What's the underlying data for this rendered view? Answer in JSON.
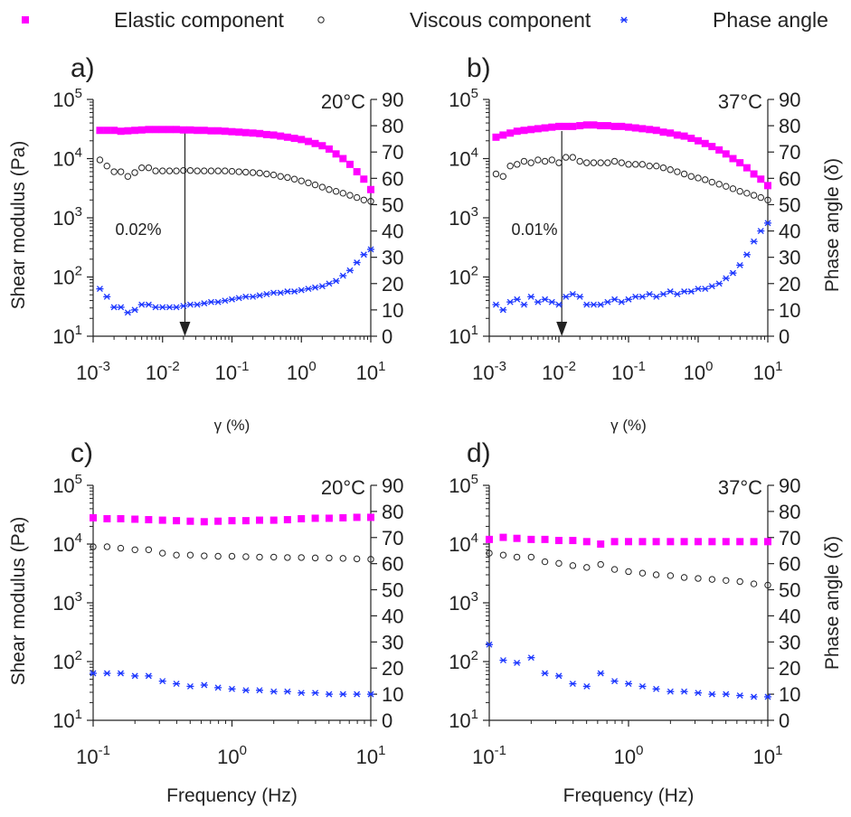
{
  "legend": [
    {
      "label": "Elastic component",
      "icon": "pink-square-marker",
      "color": "#ff00ff"
    },
    {
      "label": "Viscous component",
      "icon": "open-circle-marker",
      "color": "#222222"
    },
    {
      "label": "Phase angle",
      "icon": "blue-asterisk-marker",
      "color": "#1a35ff"
    }
  ],
  "left_axis": {
    "label": "Shear modulus (Pa)",
    "ticks": [
      {
        "base": "10",
        "exp": "1"
      },
      {
        "base": "10",
        "exp": "2"
      },
      {
        "base": "10",
        "exp": "3"
      },
      {
        "base": "10",
        "exp": "4"
      },
      {
        "base": "10",
        "exp": "5"
      }
    ]
  },
  "right_axis": {
    "label": "Phase angle (δ)",
    "ticks": [
      "0",
      "10",
      "20",
      "30",
      "40",
      "50",
      "60",
      "70",
      "80",
      "90"
    ]
  },
  "x_ticks": {
    "strain": [
      {
        "base": "10",
        "exp": "-3"
      },
      {
        "base": "10",
        "exp": "-2"
      },
      {
        "base": "10",
        "exp": "-1"
      },
      {
        "base": "10",
        "exp": "0"
      },
      {
        "base": "10",
        "exp": "1"
      }
    ],
    "frequency": [
      {
        "base": "10",
        "exp": "-1"
      },
      {
        "base": "10",
        "exp": "0"
      },
      {
        "base": "10",
        "exp": "1"
      }
    ]
  },
  "chart_data": [
    {
      "type": "scatter",
      "panel": "a)",
      "temperature": "20°C",
      "temperature_color": "#1a1aa0",
      "xlabel": "γ (%)",
      "x_scale": "log",
      "xlim": [
        0.001,
        10
      ],
      "ylabel": "Shear modulus (Pa)",
      "y_scale": "log",
      "ylim": [
        10,
        100000
      ],
      "y2label": "",
      "y2lim": [
        0,
        90
      ],
      "annotation": {
        "text": "0.02%",
        "arrow_x": 0.021
      },
      "series": [
        {
          "name": "Elastic component",
          "axis": "left",
          "x": [
            0.00125,
            0.00158,
            0.002,
            0.00251,
            0.00316,
            0.00398,
            0.00501,
            0.00631,
            0.00794,
            0.01,
            0.0126,
            0.0158,
            0.02,
            0.0251,
            0.0316,
            0.0398,
            0.0501,
            0.0631,
            0.0794,
            0.1,
            0.126,
            0.158,
            0.2,
            0.251,
            0.316,
            0.398,
            0.501,
            0.631,
            0.794,
            1,
            1.26,
            1.58,
            2,
            2.51,
            3.16,
            3.98,
            5.01,
            6.31,
            7.94,
            10
          ],
          "y": [
            30000,
            30000,
            30000,
            29000,
            29500,
            30000,
            30500,
            31000,
            31000,
            31000,
            31000,
            31000,
            30500,
            30500,
            30000,
            30000,
            29500,
            29500,
            29000,
            28500,
            28000,
            27500,
            27000,
            26500,
            25500,
            25000,
            24000,
            23000,
            22000,
            21000,
            19500,
            18000,
            16500,
            14500,
            12000,
            10000,
            8000,
            6000,
            4500,
            3000
          ]
        },
        {
          "name": "Viscous component",
          "axis": "left",
          "x": [
            0.00125,
            0.00158,
            0.002,
            0.00251,
            0.00316,
            0.00398,
            0.00501,
            0.00631,
            0.00794,
            0.01,
            0.0126,
            0.0158,
            0.02,
            0.0251,
            0.0316,
            0.0398,
            0.0501,
            0.0631,
            0.0794,
            0.1,
            0.126,
            0.158,
            0.2,
            0.251,
            0.316,
            0.398,
            0.501,
            0.631,
            0.794,
            1,
            1.26,
            1.58,
            2,
            2.51,
            3.16,
            3.98,
            5.01,
            6.31,
            7.94,
            10
          ],
          "y": [
            9500,
            7500,
            6000,
            6000,
            5000,
            5800,
            7000,
            7000,
            6200,
            6200,
            6200,
            6200,
            6300,
            6300,
            6200,
            6200,
            6200,
            6200,
            6200,
            6100,
            6000,
            5900,
            5800,
            5700,
            5500,
            5300,
            5000,
            4800,
            4500,
            4200,
            3900,
            3600,
            3300,
            3000,
            2800,
            2600,
            2400,
            2200,
            2000,
            1900
          ]
        },
        {
          "name": "Phase angle",
          "axis": "right",
          "x": [
            0.00125,
            0.00158,
            0.002,
            0.00251,
            0.00316,
            0.00398,
            0.00501,
            0.00631,
            0.00794,
            0.01,
            0.0126,
            0.0158,
            0.02,
            0.0251,
            0.0316,
            0.0398,
            0.0501,
            0.0631,
            0.0794,
            0.1,
            0.126,
            0.158,
            0.2,
            0.251,
            0.316,
            0.398,
            0.501,
            0.631,
            0.794,
            1,
            1.26,
            1.58,
            2,
            2.51,
            3.16,
            3.98,
            5.01,
            6.31,
            7.94,
            10
          ],
          "y": [
            18,
            15,
            11,
            11,
            9,
            10,
            12,
            12,
            11,
            11,
            11,
            11,
            11.5,
            12,
            12,
            12.5,
            13,
            13,
            13.5,
            14,
            14.5,
            15,
            15,
            15.5,
            16,
            16.5,
            16.5,
            17,
            17,
            17.5,
            18,
            18.5,
            19,
            20,
            21,
            23,
            25,
            28,
            31,
            33
          ]
        }
      ]
    },
    {
      "type": "scatter",
      "panel": "b)",
      "temperature": "37°C",
      "temperature_color": "#222222",
      "xlabel": "γ (%)",
      "x_scale": "log",
      "xlim": [
        0.001,
        10
      ],
      "ylabel": "",
      "y_scale": "log",
      "ylim": [
        10,
        100000
      ],
      "y2label": "Phase angle (δ)",
      "y2lim": [
        0,
        90
      ],
      "annotation": {
        "text": "0.01%",
        "arrow_x": 0.011
      },
      "series": [
        {
          "name": "Elastic component",
          "axis": "left",
          "x": [
            0.00125,
            0.00158,
            0.002,
            0.00251,
            0.00316,
            0.00398,
            0.00501,
            0.00631,
            0.00794,
            0.01,
            0.0126,
            0.0158,
            0.02,
            0.0251,
            0.0316,
            0.0398,
            0.0501,
            0.0631,
            0.0794,
            0.1,
            0.126,
            0.158,
            0.2,
            0.251,
            0.316,
            0.398,
            0.501,
            0.631,
            0.794,
            1,
            1.26,
            1.58,
            2,
            2.51,
            3.16,
            3.98,
            5.01,
            6.31,
            7.94,
            10
          ],
          "y": [
            23000,
            25000,
            27000,
            29000,
            30000,
            31000,
            32000,
            33000,
            34000,
            35000,
            35000,
            35000,
            36000,
            37000,
            37000,
            36000,
            36000,
            35000,
            35000,
            34000,
            33000,
            32000,
            31000,
            30000,
            28000,
            27000,
            25000,
            24000,
            22000,
            20000,
            18000,
            16000,
            14000,
            12000,
            10000,
            8500,
            7000,
            5500,
            4500,
            3500
          ]
        },
        {
          "name": "Viscous component",
          "axis": "left",
          "x": [
            0.00125,
            0.00158,
            0.002,
            0.00251,
            0.00316,
            0.00398,
            0.00501,
            0.00631,
            0.00794,
            0.01,
            0.0126,
            0.0158,
            0.02,
            0.0251,
            0.0316,
            0.0398,
            0.0501,
            0.0631,
            0.0794,
            0.1,
            0.126,
            0.158,
            0.2,
            0.251,
            0.316,
            0.398,
            0.501,
            0.631,
            0.794,
            1,
            1.26,
            1.58,
            2,
            2.51,
            3.16,
            3.98,
            5.01,
            6.31,
            7.94,
            10
          ],
          "y": [
            5500,
            5000,
            7500,
            8000,
            9000,
            8500,
            9500,
            9000,
            9500,
            8500,
            10500,
            10500,
            9000,
            8500,
            8500,
            8500,
            8500,
            9000,
            8500,
            8000,
            8000,
            8000,
            7500,
            7500,
            7000,
            6500,
            6000,
            5500,
            5000,
            4700,
            4400,
            4000,
            3700,
            3400,
            3100,
            2800,
            2600,
            2400,
            2200,
            2000
          ]
        },
        {
          "name": "Phase angle",
          "axis": "right",
          "x": [
            0.00125,
            0.00158,
            0.002,
            0.00251,
            0.00316,
            0.00398,
            0.00501,
            0.00631,
            0.00794,
            0.01,
            0.0126,
            0.0158,
            0.02,
            0.0251,
            0.0316,
            0.0398,
            0.0501,
            0.0631,
            0.0794,
            0.1,
            0.126,
            0.158,
            0.2,
            0.251,
            0.316,
            0.398,
            0.501,
            0.631,
            0.794,
            1,
            1.26,
            1.58,
            2,
            2.51,
            3.16,
            3.98,
            5.01,
            6.31,
            7.94,
            10
          ],
          "y": [
            12,
            10,
            13,
            14,
            12,
            15,
            13,
            14,
            13,
            12,
            15,
            16,
            15,
            12,
            12,
            12,
            13,
            14,
            13,
            14,
            15,
            15,
            16,
            15,
            16,
            17,
            16,
            17,
            17,
            18,
            18,
            19,
            20,
            22,
            24,
            27,
            31,
            36,
            40,
            43
          ]
        }
      ]
    },
    {
      "type": "scatter",
      "panel": "c)",
      "temperature": "20°C",
      "temperature_color": "#1a1aa0",
      "xlabel": "Frequency (Hz)",
      "x_scale": "log",
      "xlim": [
        0.1,
        10
      ],
      "ylabel": "Shear modulus (Pa)",
      "y_scale": "log",
      "ylim": [
        10,
        100000
      ],
      "y2label": "",
      "y2lim": [
        0,
        90
      ],
      "series": [
        {
          "name": "Elastic component",
          "axis": "left",
          "x": [
            0.1,
            0.126,
            0.158,
            0.2,
            0.251,
            0.316,
            0.398,
            0.501,
            0.631,
            0.794,
            1,
            1.26,
            1.58,
            2,
            2.51,
            3.16,
            3.98,
            5.01,
            6.31,
            7.94,
            10
          ],
          "y": [
            28000,
            27000,
            27000,
            26500,
            26000,
            25500,
            25000,
            24500,
            24000,
            24500,
            25000,
            25000,
            25500,
            25500,
            26000,
            27000,
            27500,
            27500,
            28000,
            28500,
            28500
          ]
        },
        {
          "name": "Viscous component",
          "axis": "left",
          "x": [
            0.1,
            0.126,
            0.158,
            0.2,
            0.251,
            0.316,
            0.398,
            0.501,
            0.631,
            0.794,
            1,
            1.26,
            1.58,
            2,
            2.51,
            3.16,
            3.98,
            5.01,
            6.31,
            7.94,
            10
          ],
          "y": [
            9000,
            9000,
            8500,
            8000,
            8000,
            7000,
            6500,
            6500,
            6300,
            6200,
            6200,
            6100,
            6000,
            6000,
            5900,
            5900,
            5800,
            5800,
            5700,
            5600,
            5500
          ]
        },
        {
          "name": "Phase angle",
          "axis": "right",
          "x": [
            0.1,
            0.126,
            0.158,
            0.2,
            0.251,
            0.316,
            0.398,
            0.501,
            0.631,
            0.794,
            1,
            1.26,
            1.58,
            2,
            2.51,
            3.16,
            3.98,
            5.01,
            6.31,
            7.94,
            10
          ],
          "y": [
            18,
            18,
            18,
            17,
            17,
            15,
            14,
            13,
            13.5,
            12.5,
            12,
            11.5,
            11.5,
            11,
            11,
            10.5,
            10.5,
            10,
            10,
            10,
            10
          ]
        }
      ]
    },
    {
      "type": "scatter",
      "panel": "d)",
      "temperature": "37°C",
      "temperature_color": "#222222",
      "xlabel": "Frequency (Hz)",
      "x_scale": "log",
      "xlim": [
        0.1,
        10
      ],
      "ylabel": "",
      "y_scale": "log",
      "ylim": [
        10,
        100000
      ],
      "y2label": "Phase angle (δ)",
      "y2lim": [
        0,
        90
      ],
      "series": [
        {
          "name": "Elastic component",
          "axis": "left",
          "x": [
            0.1,
            0.126,
            0.158,
            0.2,
            0.251,
            0.316,
            0.398,
            0.501,
            0.631,
            0.794,
            1,
            1.26,
            1.58,
            2,
            2.51,
            3.16,
            3.98,
            5.01,
            6.31,
            7.94,
            10
          ],
          "y": [
            12000,
            13000,
            12500,
            12000,
            12000,
            11500,
            11500,
            11000,
            10000,
            11000,
            11000,
            11000,
            11000,
            11000,
            11000,
            11000,
            11000,
            11000,
            11000,
            11000,
            11000
          ]
        },
        {
          "name": "Viscous component",
          "axis": "left",
          "x": [
            0.1,
            0.126,
            0.158,
            0.2,
            0.251,
            0.316,
            0.398,
            0.501,
            0.631,
            0.794,
            1,
            1.26,
            1.58,
            2,
            2.51,
            3.16,
            3.98,
            5.01,
            6.31,
            7.94,
            10
          ],
          "y": [
            7000,
            6500,
            6000,
            6000,
            5000,
            4700,
            4300,
            4000,
            4500,
            3700,
            3400,
            3200,
            3000,
            2900,
            2700,
            2600,
            2500,
            2400,
            2300,
            2100,
            2000
          ]
        },
        {
          "name": "Phase angle",
          "axis": "right",
          "x": [
            0.1,
            0.126,
            0.158,
            0.2,
            0.251,
            0.316,
            0.398,
            0.501,
            0.631,
            0.794,
            1,
            1.26,
            1.58,
            2,
            2.51,
            3.16,
            3.98,
            5.01,
            6.31,
            7.94,
            10
          ],
          "y": [
            29,
            23,
            22,
            24,
            18,
            17,
            14,
            13,
            18,
            15,
            14,
            13,
            12,
            11,
            11,
            10.5,
            10,
            10,
            9.5,
            9,
            9
          ]
        }
      ]
    }
  ]
}
